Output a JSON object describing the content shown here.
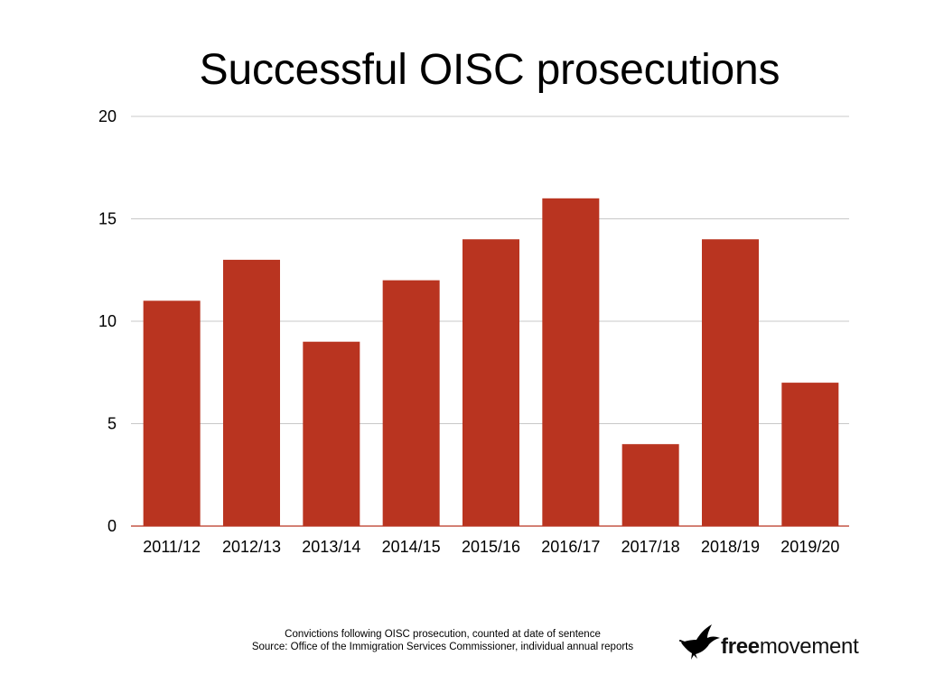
{
  "chart_data": {
    "type": "bar",
    "title": "Successful OISC prosecutions",
    "categories": [
      "2011/12",
      "2012/13",
      "2013/14",
      "2014/15",
      "2015/16",
      "2016/17",
      "2017/18",
      "2018/19",
      "2019/20"
    ],
    "values": [
      11,
      13,
      9,
      12,
      14,
      16,
      4,
      14,
      7
    ],
    "xlabel": "",
    "ylabel": "",
    "ylim": [
      0,
      20
    ],
    "yticks": [
      "0",
      "5",
      "10",
      "15",
      "20"
    ],
    "grid": true,
    "legend": "none",
    "bar_color": "#b93420"
  },
  "footnote": {
    "line1": "Convictions following OISC prosecution, counted at date of sentence",
    "line2": "Source: Office of the Immigration Services Commissioner, individual annual reports"
  },
  "brand": {
    "bold": "free",
    "rest": "movement",
    "icon": "bird-icon"
  }
}
